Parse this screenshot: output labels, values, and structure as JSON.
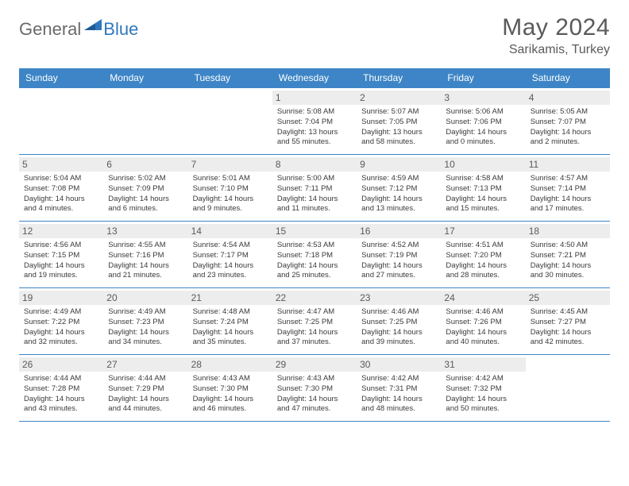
{
  "logo": {
    "general": "General",
    "blue": "Blue"
  },
  "title": "May 2024",
  "location": "Sarikamis, Turkey",
  "colors": {
    "header_bg": "#3d85c6",
    "header_text": "#ffffff",
    "daybar_bg": "#ededed",
    "border": "#3d85c6",
    "logo_gray": "#6a6a6a",
    "logo_blue": "#2f78bd"
  },
  "weekdays": [
    "Sunday",
    "Monday",
    "Tuesday",
    "Wednesday",
    "Thursday",
    "Friday",
    "Saturday"
  ],
  "weeks": [
    [
      {
        "empty": true
      },
      {
        "empty": true
      },
      {
        "empty": true
      },
      {
        "day": "1",
        "sunrise": "Sunrise: 5:08 AM",
        "sunset": "Sunset: 7:04 PM",
        "daylight": "Daylight: 13 hours and 55 minutes."
      },
      {
        "day": "2",
        "sunrise": "Sunrise: 5:07 AM",
        "sunset": "Sunset: 7:05 PM",
        "daylight": "Daylight: 13 hours and 58 minutes."
      },
      {
        "day": "3",
        "sunrise": "Sunrise: 5:06 AM",
        "sunset": "Sunset: 7:06 PM",
        "daylight": "Daylight: 14 hours and 0 minutes."
      },
      {
        "day": "4",
        "sunrise": "Sunrise: 5:05 AM",
        "sunset": "Sunset: 7:07 PM",
        "daylight": "Daylight: 14 hours and 2 minutes."
      }
    ],
    [
      {
        "day": "5",
        "sunrise": "Sunrise: 5:04 AM",
        "sunset": "Sunset: 7:08 PM",
        "daylight": "Daylight: 14 hours and 4 minutes."
      },
      {
        "day": "6",
        "sunrise": "Sunrise: 5:02 AM",
        "sunset": "Sunset: 7:09 PM",
        "daylight": "Daylight: 14 hours and 6 minutes."
      },
      {
        "day": "7",
        "sunrise": "Sunrise: 5:01 AM",
        "sunset": "Sunset: 7:10 PM",
        "daylight": "Daylight: 14 hours and 9 minutes."
      },
      {
        "day": "8",
        "sunrise": "Sunrise: 5:00 AM",
        "sunset": "Sunset: 7:11 PM",
        "daylight": "Daylight: 14 hours and 11 minutes."
      },
      {
        "day": "9",
        "sunrise": "Sunrise: 4:59 AM",
        "sunset": "Sunset: 7:12 PM",
        "daylight": "Daylight: 14 hours and 13 minutes."
      },
      {
        "day": "10",
        "sunrise": "Sunrise: 4:58 AM",
        "sunset": "Sunset: 7:13 PM",
        "daylight": "Daylight: 14 hours and 15 minutes."
      },
      {
        "day": "11",
        "sunrise": "Sunrise: 4:57 AM",
        "sunset": "Sunset: 7:14 PM",
        "daylight": "Daylight: 14 hours and 17 minutes."
      }
    ],
    [
      {
        "day": "12",
        "sunrise": "Sunrise: 4:56 AM",
        "sunset": "Sunset: 7:15 PM",
        "daylight": "Daylight: 14 hours and 19 minutes."
      },
      {
        "day": "13",
        "sunrise": "Sunrise: 4:55 AM",
        "sunset": "Sunset: 7:16 PM",
        "daylight": "Daylight: 14 hours and 21 minutes."
      },
      {
        "day": "14",
        "sunrise": "Sunrise: 4:54 AM",
        "sunset": "Sunset: 7:17 PM",
        "daylight": "Daylight: 14 hours and 23 minutes."
      },
      {
        "day": "15",
        "sunrise": "Sunrise: 4:53 AM",
        "sunset": "Sunset: 7:18 PM",
        "daylight": "Daylight: 14 hours and 25 minutes."
      },
      {
        "day": "16",
        "sunrise": "Sunrise: 4:52 AM",
        "sunset": "Sunset: 7:19 PM",
        "daylight": "Daylight: 14 hours and 27 minutes."
      },
      {
        "day": "17",
        "sunrise": "Sunrise: 4:51 AM",
        "sunset": "Sunset: 7:20 PM",
        "daylight": "Daylight: 14 hours and 28 minutes."
      },
      {
        "day": "18",
        "sunrise": "Sunrise: 4:50 AM",
        "sunset": "Sunset: 7:21 PM",
        "daylight": "Daylight: 14 hours and 30 minutes."
      }
    ],
    [
      {
        "day": "19",
        "sunrise": "Sunrise: 4:49 AM",
        "sunset": "Sunset: 7:22 PM",
        "daylight": "Daylight: 14 hours and 32 minutes."
      },
      {
        "day": "20",
        "sunrise": "Sunrise: 4:49 AM",
        "sunset": "Sunset: 7:23 PM",
        "daylight": "Daylight: 14 hours and 34 minutes."
      },
      {
        "day": "21",
        "sunrise": "Sunrise: 4:48 AM",
        "sunset": "Sunset: 7:24 PM",
        "daylight": "Daylight: 14 hours and 35 minutes."
      },
      {
        "day": "22",
        "sunrise": "Sunrise: 4:47 AM",
        "sunset": "Sunset: 7:25 PM",
        "daylight": "Daylight: 14 hours and 37 minutes."
      },
      {
        "day": "23",
        "sunrise": "Sunrise: 4:46 AM",
        "sunset": "Sunset: 7:25 PM",
        "daylight": "Daylight: 14 hours and 39 minutes."
      },
      {
        "day": "24",
        "sunrise": "Sunrise: 4:46 AM",
        "sunset": "Sunset: 7:26 PM",
        "daylight": "Daylight: 14 hours and 40 minutes."
      },
      {
        "day": "25",
        "sunrise": "Sunrise: 4:45 AM",
        "sunset": "Sunset: 7:27 PM",
        "daylight": "Daylight: 14 hours and 42 minutes."
      }
    ],
    [
      {
        "day": "26",
        "sunrise": "Sunrise: 4:44 AM",
        "sunset": "Sunset: 7:28 PM",
        "daylight": "Daylight: 14 hours and 43 minutes."
      },
      {
        "day": "27",
        "sunrise": "Sunrise: 4:44 AM",
        "sunset": "Sunset: 7:29 PM",
        "daylight": "Daylight: 14 hours and 44 minutes."
      },
      {
        "day": "28",
        "sunrise": "Sunrise: 4:43 AM",
        "sunset": "Sunset: 7:30 PM",
        "daylight": "Daylight: 14 hours and 46 minutes."
      },
      {
        "day": "29",
        "sunrise": "Sunrise: 4:43 AM",
        "sunset": "Sunset: 7:30 PM",
        "daylight": "Daylight: 14 hours and 47 minutes."
      },
      {
        "day": "30",
        "sunrise": "Sunrise: 4:42 AM",
        "sunset": "Sunset: 7:31 PM",
        "daylight": "Daylight: 14 hours and 48 minutes."
      },
      {
        "day": "31",
        "sunrise": "Sunrise: 4:42 AM",
        "sunset": "Sunset: 7:32 PM",
        "daylight": "Daylight: 14 hours and 50 minutes."
      },
      {
        "empty": true
      }
    ]
  ]
}
